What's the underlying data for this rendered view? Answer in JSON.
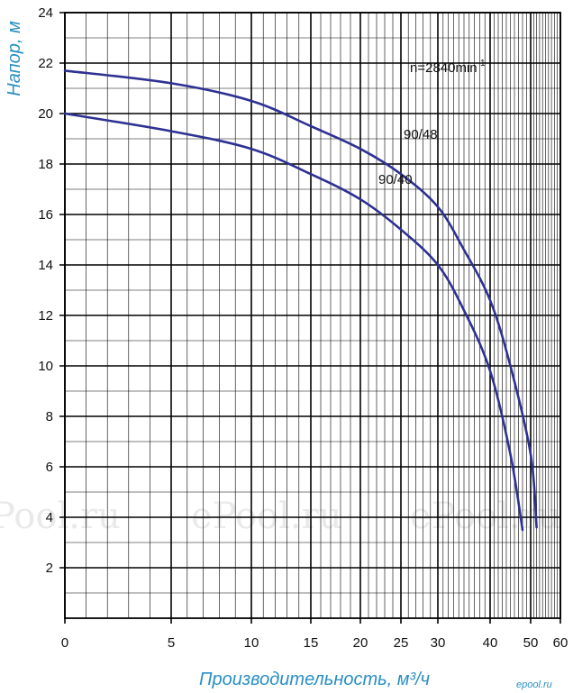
{
  "chart_data": {
    "type": "line",
    "xlabel": "Производительность, м³/ч",
    "ylabel": "Напор, м",
    "x_scale": "log-like (non-uniform)",
    "x_ticks": [
      0,
      5,
      10,
      15,
      20,
      25,
      30,
      40,
      50,
      60
    ],
    "y_ticks": [
      2,
      4,
      6,
      8,
      10,
      12,
      14,
      16,
      18,
      20,
      22,
      24
    ],
    "xlim": [
      0,
      60
    ],
    "ylim": [
      0,
      24
    ],
    "grid": true,
    "annotation": {
      "text": "n=2840min",
      "sup": "-1"
    },
    "series": [
      {
        "name": "90/48",
        "color": "#2e3192",
        "points": [
          [
            0,
            21.7
          ],
          [
            5,
            21.2
          ],
          [
            10,
            20.5
          ],
          [
            15,
            19.5
          ],
          [
            20,
            18.6
          ],
          [
            25,
            17.6
          ],
          [
            30,
            16.3
          ],
          [
            35,
            14.6
          ],
          [
            40,
            12.6
          ],
          [
            45,
            10.0
          ],
          [
            50,
            6.5
          ],
          [
            52,
            3.6
          ]
        ]
      },
      {
        "name": "90/40",
        "color": "#2e3192",
        "points": [
          [
            0,
            20.0
          ],
          [
            5,
            19.3
          ],
          [
            10,
            18.6
          ],
          [
            15,
            17.6
          ],
          [
            20,
            16.6
          ],
          [
            25,
            15.4
          ],
          [
            30,
            14.0
          ],
          [
            35,
            12.2
          ],
          [
            40,
            9.8
          ],
          [
            45,
            6.5
          ],
          [
            48,
            3.5
          ]
        ]
      }
    ]
  },
  "watermarks": [
    "Pool.ru",
    "ePool.ru",
    "ePool.ru"
  ],
  "brand": "epool.ru"
}
